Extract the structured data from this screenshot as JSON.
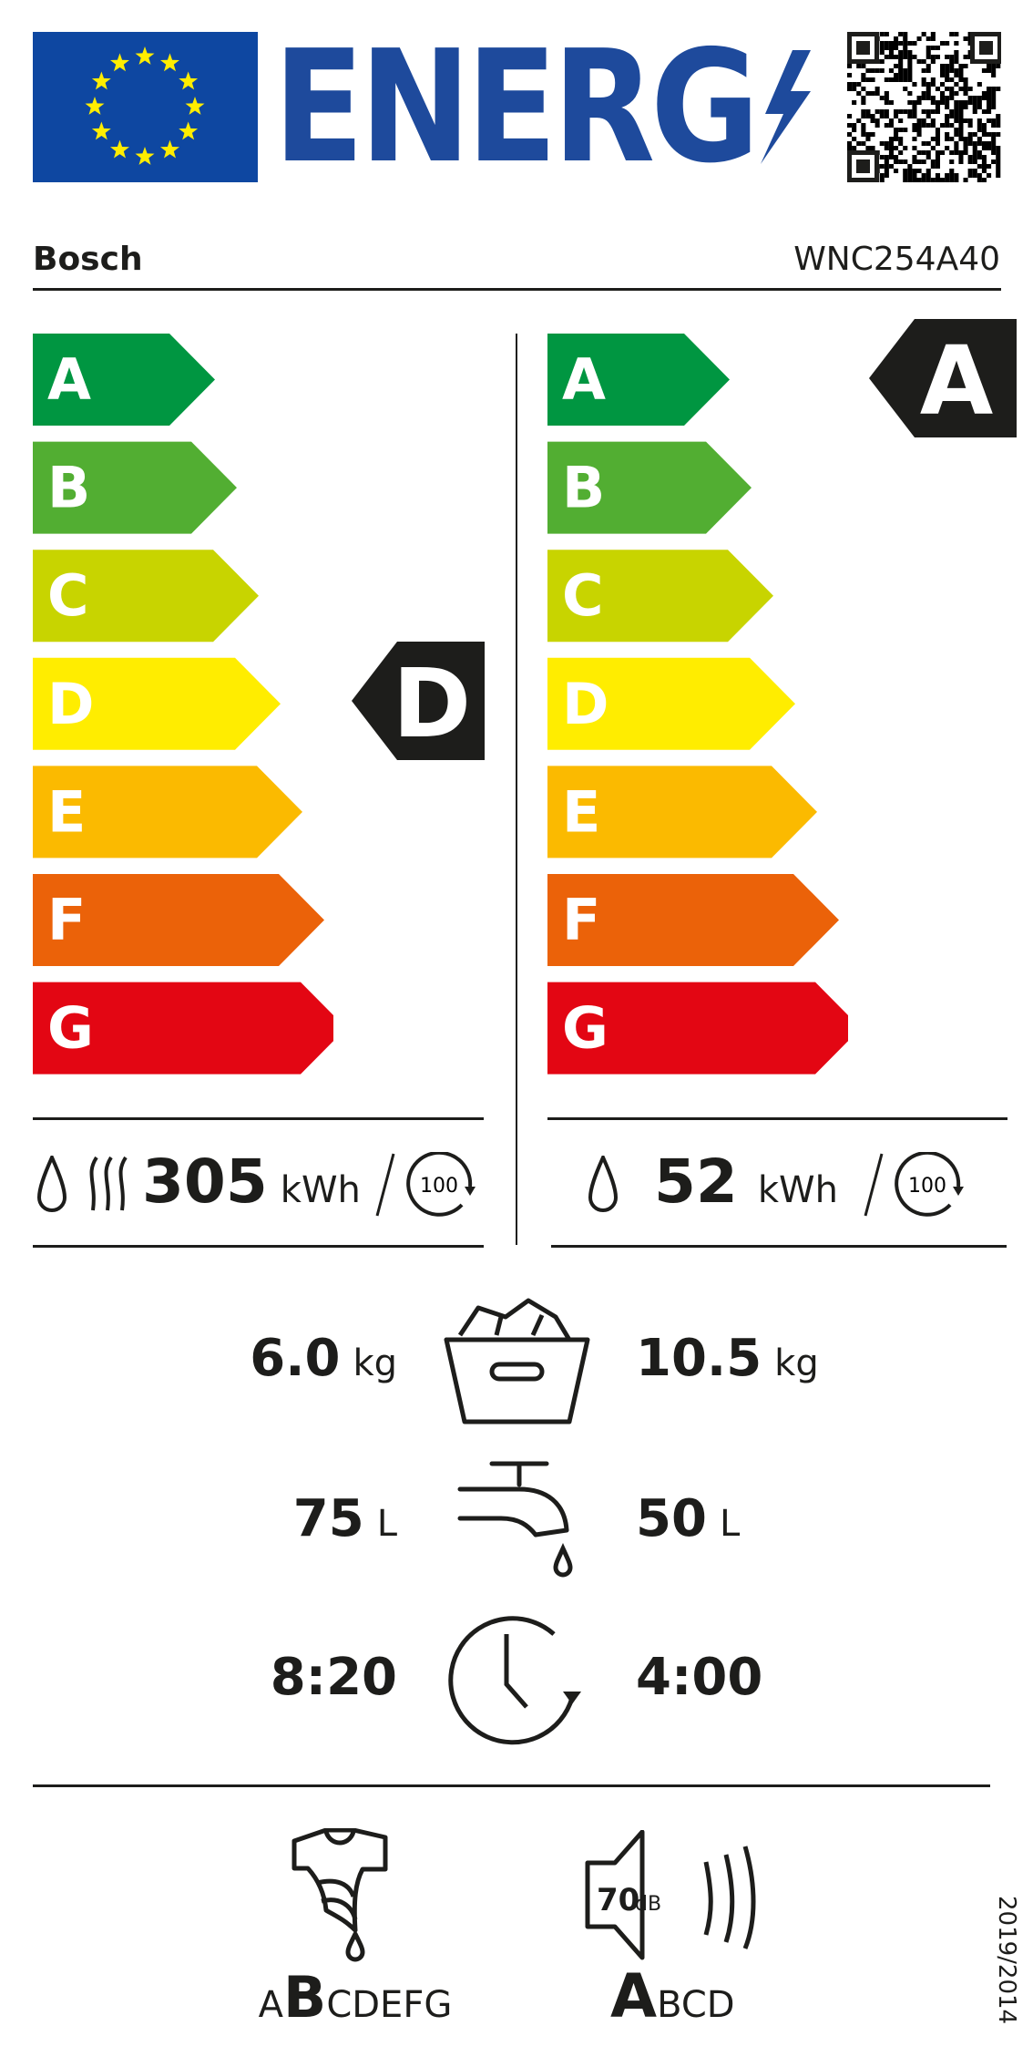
{
  "header": {
    "logo_text": "ENERG",
    "supplier": "Bosch",
    "model": "WNC254A40"
  },
  "scale": {
    "classes": [
      "A",
      "B",
      "C",
      "D",
      "E",
      "F",
      "G"
    ],
    "colors": [
      "#009641",
      "#52ae32",
      "#c8d400",
      "#ffed00",
      "#fbba00",
      "#eb6209",
      "#e30613"
    ]
  },
  "washer_dryer": {
    "class": "D",
    "energy_value": "305",
    "energy_unit": "kWh",
    "cycles": "100"
  },
  "washer": {
    "class": "A",
    "energy_value": "52",
    "energy_unit": "kWh",
    "cycles": "100"
  },
  "capacity": {
    "wash_dry": "6.0",
    "wash": "10.5",
    "unit": "kg"
  },
  "water": {
    "wash_dry": "75",
    "wash": "50",
    "unit": "L"
  },
  "duration": {
    "wash_dry": "8:20",
    "wash": "4:00"
  },
  "spin": {
    "before": "A",
    "selected": "B",
    "after": "CDEFG"
  },
  "noise": {
    "value": "70",
    "unit": "dB",
    "selected": "A",
    "after": "BCD"
  },
  "regulation": "2019/2014"
}
